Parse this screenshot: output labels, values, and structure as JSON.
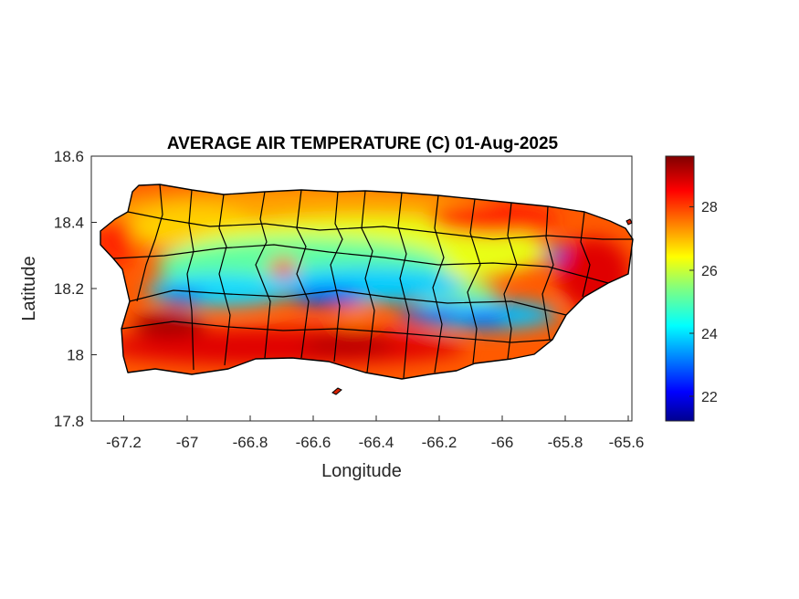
{
  "figure": {
    "title": "AVERAGE AIR TEMPERATURE (C) 01-Aug-2025",
    "xlabel": "Longitude",
    "ylabel": "Latitude",
    "xticks": [
      "-67.2",
      "-67",
      "-66.8",
      "-66.6",
      "-66.4",
      "-66.2",
      "-66",
      "-65.8",
      "-65.6"
    ],
    "yticks": [
      "18.6",
      "18.4",
      "18.2",
      "18",
      "17.8"
    ],
    "colorbar_ticks": [
      "28",
      "26",
      "24",
      "22"
    ]
  },
  "chart_data": {
    "type": "heatmap",
    "title": "AVERAGE AIR TEMPERATURE (C) 01-Aug-2025",
    "xlabel": "Longitude",
    "ylabel": "Latitude",
    "xlim": [
      -67.3,
      -65.59
    ],
    "ylim": [
      17.8,
      18.6
    ],
    "colorbar": {
      "colormap": "jet",
      "range": [
        21.2,
        29.6
      ],
      "ticks": [
        22,
        24,
        26,
        28
      ]
    },
    "region": "Puerto Rico",
    "boundaries": "municipality outlines",
    "cells": [
      {
        "lon": -66.55,
        "lat": 18.17,
        "value": 22.0
      },
      {
        "lon": -66.12,
        "lat": 18.13,
        "value": 22.3
      },
      {
        "lon": -66.05,
        "lat": 18.11,
        "value": 22.5
      },
      {
        "lon": -65.8,
        "lat": 18.3,
        "value": 22.6
      },
      {
        "lon": -66.85,
        "lat": 18.2,
        "value": 23.2
      },
      {
        "lon": -67.0,
        "lat": 18.2,
        "value": 23.5
      },
      {
        "lon": -66.45,
        "lat": 18.22,
        "value": 24.0
      },
      {
        "lon": -66.6,
        "lat": 18.22,
        "value": 24.5
      },
      {
        "lon": -66.3,
        "lat": 18.22,
        "value": 25.0
      },
      {
        "lon": -65.95,
        "lat": 18.2,
        "value": 24.8
      },
      {
        "lon": -66.72,
        "lat": 18.26,
        "value": 28.5
      },
      {
        "lon": -66.53,
        "lat": 18.13,
        "value": 28.0
      },
      {
        "lon": -67.08,
        "lat": 18.1,
        "value": 29.5
      },
      {
        "lon": -66.6,
        "lat": 18.03,
        "value": 29.3
      },
      {
        "lon": -66.3,
        "lat": 18.48,
        "value": 28.6
      },
      {
        "lon": -65.65,
        "lat": 18.33,
        "value": 29.2
      },
      {
        "lon": -65.85,
        "lat": 18.06,
        "value": 28.8
      },
      {
        "lon": -67.15,
        "lat": 18.45,
        "value": 28.8
      },
      {
        "lon": -66.8,
        "lat": 18.45,
        "value": 27.5
      },
      {
        "lon": -66.5,
        "lat": 18.38,
        "value": 25.8
      }
    ]
  }
}
